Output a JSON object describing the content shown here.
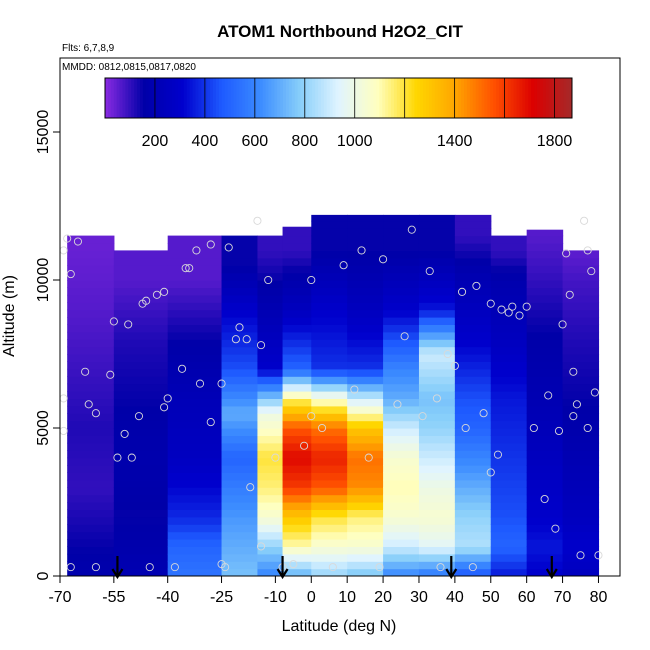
{
  "chart_data": {
    "type": "heatmap",
    "title": "ATOM1 Northbound H2O2_CIT",
    "annotations": [
      "Flts: 6,7,8,9",
      "MMDD: 0812,0815,0817,0820"
    ],
    "xlabel": "Latitude (deg N)",
    "ylabel": "Altitude (m)",
    "xlim": [
      -70,
      86
    ],
    "ylim": [
      0,
      17500
    ],
    "x_ticks": [
      -70,
      -55,
      -40,
      -25,
      -10,
      0,
      10,
      20,
      30,
      40,
      50,
      60,
      70,
      80
    ],
    "x_tick_labels": [
      "-70",
      "-55",
      "-40",
      "-25",
      "-10",
      "0",
      "10",
      "20",
      "30",
      "40",
      "50",
      "60",
      "70",
      "80"
    ],
    "y_ticks": [
      0,
      5000,
      10000,
      15000
    ],
    "y_tick_labels": [
      "0",
      "5000",
      "10000",
      "15000"
    ],
    "colorbar": {
      "range": [
        0,
        1870
      ],
      "ticks": [
        200,
        400,
        600,
        800,
        1000,
        1400,
        1800
      ],
      "tick_labels": [
        "200",
        "400",
        "600",
        "800",
        "1000",
        "1400",
        "1800"
      ],
      "colors": [
        "#8a2be2",
        "#0000a8",
        "#0000cd",
        "#1e5aff",
        "#3c8cff",
        "#87cefa",
        "#e0f4ff",
        "#ffffc0",
        "#ffd700",
        "#ffa500",
        "#ff5000",
        "#dc0000",
        "#a52a2a"
      ]
    },
    "flight_markers_lat": [
      -54,
      -8,
      39,
      67
    ],
    "profiles": [
      {
        "lat_range": [
          -68,
          -55
        ],
        "z_top": 11500,
        "levels": [
          [
            0,
            180
          ],
          [
            1000,
            150
          ],
          [
            3000,
            100
          ],
          [
            5000,
            120
          ],
          [
            7000,
            90
          ],
          [
            9000,
            60
          ],
          [
            11000,
            40
          ]
        ]
      },
      {
        "lat_range": [
          -55,
          -40
        ],
        "z_top": 11000,
        "levels": [
          [
            0,
            200
          ],
          [
            2000,
            150
          ],
          [
            4000,
            180
          ],
          [
            6000,
            150
          ],
          [
            8000,
            120
          ],
          [
            10000,
            60
          ]
        ]
      },
      {
        "lat_range": [
          -40,
          -25
        ],
        "z_top": 11500,
        "levels": [
          [
            0,
            550
          ],
          [
            1000,
            500
          ],
          [
            2000,
            380
          ],
          [
            4000,
            260
          ],
          [
            6000,
            220
          ],
          [
            8000,
            150
          ],
          [
            10000,
            60
          ]
        ]
      },
      {
        "lat_range": [
          -25,
          -15
        ],
        "z_top": 11500,
        "levels": [
          [
            0,
            750
          ],
          [
            1000,
            700
          ],
          [
            2000,
            650
          ],
          [
            4000,
            500
          ],
          [
            5500,
            700
          ],
          [
            7000,
            450
          ],
          [
            9000,
            300
          ],
          [
            10500,
            150
          ]
        ]
      },
      {
        "lat_range": [
          -15,
          -8
        ],
        "z_top": 11500,
        "levels": [
          [
            0,
            600
          ],
          [
            1000,
            800
          ],
          [
            2000,
            1050
          ],
          [
            3000,
            1150
          ],
          [
            4000,
            1200
          ],
          [
            5500,
            1000
          ],
          [
            7000,
            300
          ],
          [
            9000,
            200
          ],
          [
            11000,
            100
          ]
        ]
      },
      {
        "lat_range": [
          -8,
          0
        ],
        "z_top": 11800,
        "levels": [
          [
            0,
            700
          ],
          [
            1000,
            1100
          ],
          [
            2000,
            1300
          ],
          [
            3000,
            1600
          ],
          [
            4000,
            1700
          ],
          [
            5000,
            1550
          ],
          [
            6000,
            1150
          ],
          [
            7000,
            500
          ],
          [
            9000,
            250
          ],
          [
            11000,
            100
          ]
        ]
      },
      {
        "lat_range": [
          0,
          10
        ],
        "z_top": 12200,
        "levels": [
          [
            0,
            800
          ],
          [
            1000,
            1050
          ],
          [
            2000,
            1200
          ],
          [
            3000,
            1550
          ],
          [
            4000,
            1650
          ],
          [
            5000,
            1500
          ],
          [
            6000,
            1050
          ],
          [
            7000,
            400
          ],
          [
            9000,
            300
          ],
          [
            11000,
            150
          ]
        ]
      },
      {
        "lat_range": [
          10,
          20
        ],
        "z_top": 12200,
        "levels": [
          [
            0,
            750
          ],
          [
            1000,
            1050
          ],
          [
            2000,
            1150
          ],
          [
            3000,
            1450
          ],
          [
            4000,
            1500
          ],
          [
            5000,
            1300
          ],
          [
            6000,
            900
          ],
          [
            7000,
            400
          ],
          [
            9000,
            250
          ],
          [
            11000,
            150
          ]
        ]
      },
      {
        "lat_range": [
          20,
          30
        ],
        "z_top": 12200,
        "levels": [
          [
            0,
            600
          ],
          [
            1000,
            900
          ],
          [
            2000,
            1050
          ],
          [
            3000,
            1100
          ],
          [
            4000,
            1050
          ],
          [
            5000,
            900
          ],
          [
            6000,
            700
          ],
          [
            7000,
            600
          ],
          [
            9000,
            300
          ],
          [
            11000,
            150
          ]
        ]
      },
      {
        "lat_range": [
          30,
          40
        ],
        "z_top": 12200,
        "levels": [
          [
            0,
            550
          ],
          [
            1000,
            950
          ],
          [
            2000,
            1050
          ],
          [
            3000,
            1000
          ],
          [
            4000,
            900
          ],
          [
            5000,
            800
          ],
          [
            6000,
            750
          ],
          [
            7500,
            900
          ],
          [
            9000,
            350
          ],
          [
            11000,
            150
          ]
        ]
      },
      {
        "lat_range": [
          40,
          50
        ],
        "z_top": 12200,
        "levels": [
          [
            0,
            450
          ],
          [
            1000,
            850
          ],
          [
            2000,
            800
          ],
          [
            3000,
            700
          ],
          [
            4000,
            600
          ],
          [
            5000,
            500
          ],
          [
            6000,
            450
          ],
          [
            8000,
            300
          ],
          [
            10000,
            200
          ],
          [
            11500,
            100
          ]
        ]
      },
      {
        "lat_range": [
          50,
          60
        ],
        "z_top": 11500,
        "levels": [
          [
            0,
            350
          ],
          [
            1000,
            500
          ],
          [
            2000,
            450
          ],
          [
            4000,
            400
          ],
          [
            6000,
            350
          ],
          [
            8000,
            250
          ],
          [
            10000,
            180
          ],
          [
            11000,
            100
          ]
        ]
      },
      {
        "lat_range": [
          60,
          70
        ],
        "z_top": 11700,
        "levels": [
          [
            0,
            300
          ],
          [
            1000,
            350
          ],
          [
            2000,
            300
          ],
          [
            4000,
            250
          ],
          [
            6000,
            200
          ],
          [
            8000,
            160
          ],
          [
            10000,
            100
          ],
          [
            11500,
            60
          ]
        ]
      },
      {
        "lat_range": [
          70,
          80
        ],
        "z_top": 11000,
        "levels": [
          [
            0,
            250
          ],
          [
            1000,
            300
          ],
          [
            2000,
            250
          ],
          [
            4000,
            200
          ],
          [
            6000,
            150
          ],
          [
            8000,
            120
          ],
          [
            10000,
            80
          ],
          [
            11000,
            50
          ]
        ]
      }
    ],
    "sample_points": [
      [
        -69,
        11000
      ],
      [
        -68,
        11400
      ],
      [
        -67,
        10200
      ],
      [
        -65,
        11300
      ],
      [
        -69,
        6000
      ],
      [
        -69,
        4900
      ],
      [
        -67,
        300
      ],
      [
        -63,
        6900
      ],
      [
        -62,
        5800
      ],
      [
        -60,
        5500
      ],
      [
        -60,
        300
      ],
      [
        -56,
        6800
      ],
      [
        -55,
        8600
      ],
      [
        -54,
        4000
      ],
      [
        -52,
        4800
      ],
      [
        -51,
        8500
      ],
      [
        -50,
        4000
      ],
      [
        -48,
        5400
      ],
      [
        -47,
        9200
      ],
      [
        -46,
        9300
      ],
      [
        -45,
        300
      ],
      [
        -43,
        9500
      ],
      [
        -41,
        9600
      ],
      [
        -41,
        5700
      ],
      [
        -40,
        6000
      ],
      [
        -38,
        300
      ],
      [
        -36,
        7000
      ],
      [
        -35,
        10400
      ],
      [
        -34,
        10400
      ],
      [
        -32,
        11000
      ],
      [
        -31,
        6500
      ],
      [
        -28,
        11200
      ],
      [
        -28,
        5200
      ],
      [
        -25,
        6500
      ],
      [
        -25,
        400
      ],
      [
        -24,
        300
      ],
      [
        -23,
        11100
      ],
      [
        -21,
        8000
      ],
      [
        -20,
        8400
      ],
      [
        -18,
        8000
      ],
      [
        -17,
        3000
      ],
      [
        -15,
        12000
      ],
      [
        -14,
        7800
      ],
      [
        -14,
        1000
      ],
      [
        -12,
        10000
      ],
      [
        -10,
        4000
      ],
      [
        -8,
        300
      ],
      [
        -5,
        400
      ],
      [
        -2,
        4400
      ],
      [
        0,
        10000
      ],
      [
        0,
        5400
      ],
      [
        3,
        5000
      ],
      [
        6,
        300
      ],
      [
        9,
        10500
      ],
      [
        12,
        6300
      ],
      [
        14,
        11000
      ],
      [
        16,
        4000
      ],
      [
        19,
        300
      ],
      [
        20,
        10700
      ],
      [
        24,
        5800
      ],
      [
        26,
        8100
      ],
      [
        28,
        11700
      ],
      [
        31,
        5400
      ],
      [
        33,
        10300
      ],
      [
        35,
        6000
      ],
      [
        36,
        300
      ],
      [
        38,
        7500
      ],
      [
        40,
        7100
      ],
      [
        42,
        9600
      ],
      [
        43,
        5000
      ],
      [
        45,
        300
      ],
      [
        46,
        9800
      ],
      [
        48,
        5500
      ],
      [
        50,
        3500
      ],
      [
        50,
        9200
      ],
      [
        52,
        4100
      ],
      [
        53,
        9000
      ],
      [
        55,
        8900
      ],
      [
        56,
        9100
      ],
      [
        58,
        8800
      ],
      [
        60,
        9100
      ],
      [
        62,
        5000
      ],
      [
        65,
        2600
      ],
      [
        66,
        6100
      ],
      [
        68,
        1600
      ],
      [
        69,
        4900
      ],
      [
        70,
        8500
      ],
      [
        71,
        10900
      ],
      [
        72,
        9500
      ],
      [
        73,
        5400
      ],
      [
        73,
        6900
      ],
      [
        74,
        5800
      ],
      [
        75,
        700
      ],
      [
        76,
        12000
      ],
      [
        77,
        11000
      ],
      [
        77,
        5000
      ],
      [
        78,
        10300
      ],
      [
        79,
        6200
      ],
      [
        80,
        700
      ]
    ]
  }
}
